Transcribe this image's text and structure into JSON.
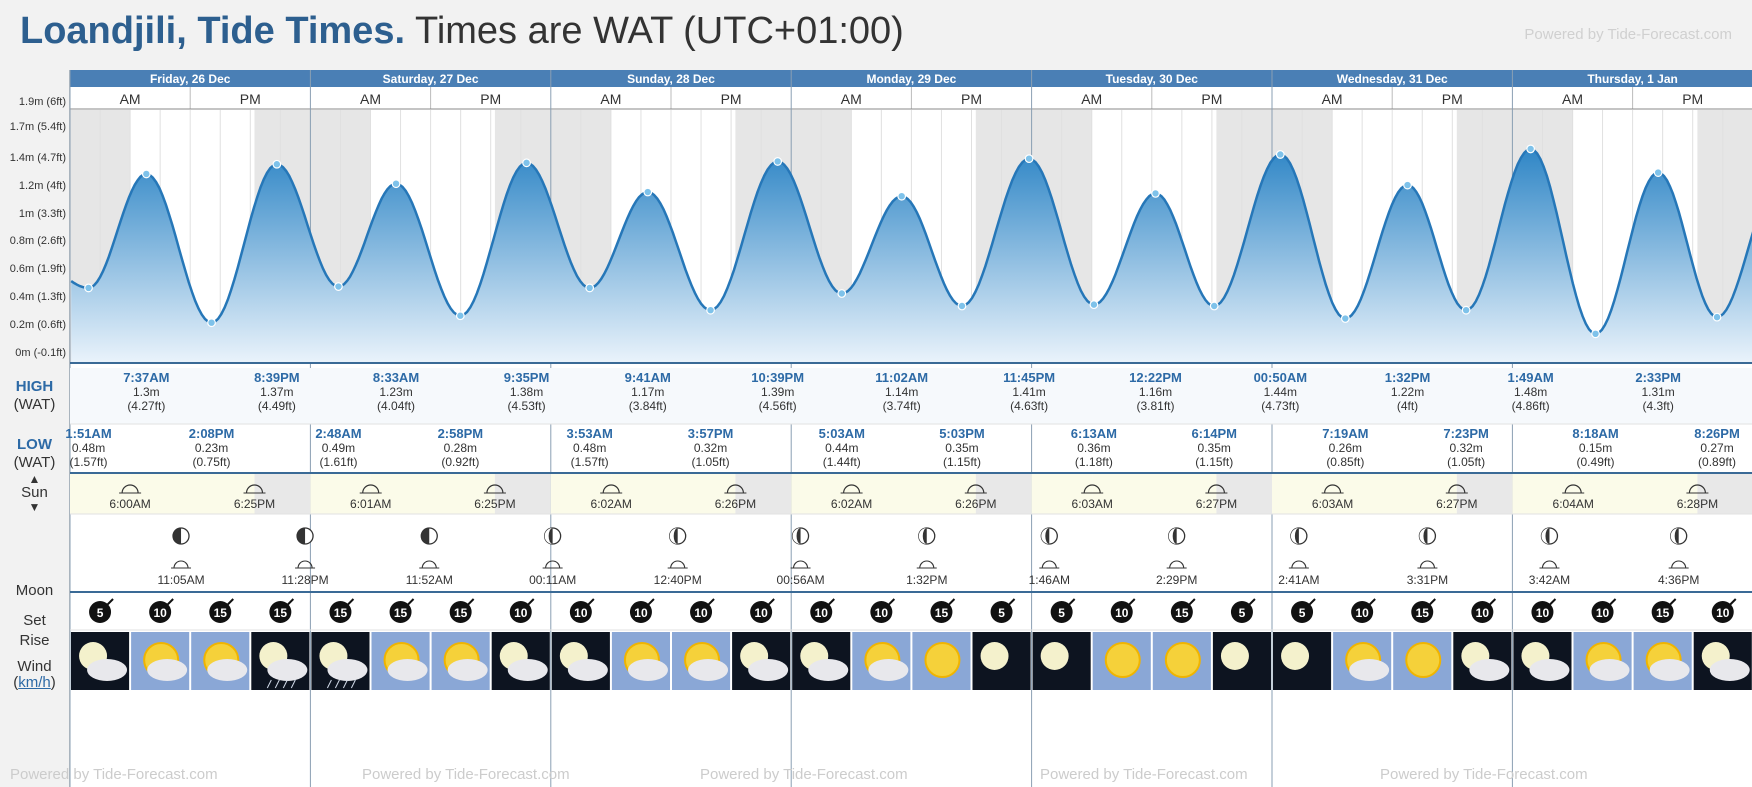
{
  "header": {
    "location_title": "Loandjili, Tide Times.",
    "timezone_text": "Times are WAT (UTC+01:00)",
    "powered_by": "Powered by Tide-Forecast.com"
  },
  "row_labels": {
    "high": "HIGH",
    "high_tz": "(WAT)",
    "low": "LOW",
    "low_tz": "(WAT)",
    "sun": "Sun",
    "moon": "Moon",
    "set": "Set",
    "rise": "Rise",
    "wind": "Wind",
    "wind_unit": "km/h"
  },
  "days": [
    {
      "label": "Friday, 26 Dec",
      "am": "AM",
      "pm": "PM"
    },
    {
      "label": "Saturday, 27 Dec",
      "am": "AM",
      "pm": "PM"
    },
    {
      "label": "Sunday, 28 Dec",
      "am": "AM",
      "pm": "PM"
    },
    {
      "label": "Monday, 29 Dec",
      "am": "AM",
      "pm": "PM"
    },
    {
      "label": "Tuesday, 30 Dec",
      "am": "AM",
      "pm": "PM"
    },
    {
      "label": "Wednesday, 31 Dec",
      "am": "AM",
      "pm": "PM"
    },
    {
      "label": "Thursday, 1 Jan",
      "am": "AM",
      "pm": "PM"
    }
  ],
  "chart_data": {
    "type": "area",
    "title": "Loandjili, Tide Times.",
    "ylabel": "",
    "xlabel": "",
    "y_ticks": [
      "0m (-0.1ft)",
      "0.2m (0.6ft)",
      "0.4m (1.3ft)",
      "0.6m (1.9ft)",
      "0.8m (2.6ft)",
      "1m (3.3ft)",
      "1.2m (4ft)",
      "1.4m (4.7ft)",
      "1.7m (5.4ft)",
      "1.9m (6ft)"
    ],
    "ylim": [
      0,
      1.8
    ],
    "x_unit": "hours from Fri 26 Dec 00:00",
    "tides": [
      {
        "day": "Fri 26 Dec",
        "type": "low",
        "time": "1:51AM",
        "height_m": 0.48,
        "height_ft": "(1.57ft)",
        "hours": 1.85
      },
      {
        "day": "Fri 26 Dec",
        "type": "high",
        "time": "7:37AM",
        "height_m": 1.3,
        "height_ft": "(4.27ft)",
        "hours": 7.62
      },
      {
        "day": "Fri 26 Dec",
        "type": "low",
        "time": "2:08PM",
        "height_m": 0.23,
        "height_ft": "(0.75ft)",
        "hours": 14.13
      },
      {
        "day": "Fri 26 Dec",
        "type": "high",
        "time": "8:39PM",
        "height_m": 1.37,
        "height_ft": "(4.49ft)",
        "hours": 20.65
      },
      {
        "day": "Sat 27 Dec",
        "type": "low",
        "time": "2:48AM",
        "height_m": 0.49,
        "height_ft": "(1.61ft)",
        "hours": 26.8
      },
      {
        "day": "Sat 27 Dec",
        "type": "high",
        "time": "8:33AM",
        "height_m": 1.23,
        "height_ft": "(4.04ft)",
        "hours": 32.55
      },
      {
        "day": "Sat 27 Dec",
        "type": "low",
        "time": "2:58PM",
        "height_m": 0.28,
        "height_ft": "(0.92ft)",
        "hours": 38.97
      },
      {
        "day": "Sat 27 Dec",
        "type": "high",
        "time": "9:35PM",
        "height_m": 1.38,
        "height_ft": "(4.53ft)",
        "hours": 45.58
      },
      {
        "day": "Sun 28 Dec",
        "type": "low",
        "time": "3:53AM",
        "height_m": 0.48,
        "height_ft": "(1.57ft)",
        "hours": 51.88
      },
      {
        "day": "Sun 28 Dec",
        "type": "high",
        "time": "9:41AM",
        "height_m": 1.17,
        "height_ft": "(3.84ft)",
        "hours": 57.68
      },
      {
        "day": "Sun 28 Dec",
        "type": "low",
        "time": "3:57PM",
        "height_m": 0.32,
        "height_ft": "(1.05ft)",
        "hours": 63.95
      },
      {
        "day": "Sun 28 Dec",
        "type": "high",
        "time": "10:39PM",
        "height_m": 1.39,
        "height_ft": "(4.56ft)",
        "hours": 70.65
      },
      {
        "day": "Mon 29 Dec",
        "type": "low",
        "time": "5:03AM",
        "height_m": 0.44,
        "height_ft": "(1.44ft)",
        "hours": 77.05
      },
      {
        "day": "Mon 29 Dec",
        "type": "high",
        "time": "11:02AM",
        "height_m": 1.14,
        "height_ft": "(3.74ft)",
        "hours": 83.03
      },
      {
        "day": "Mon 29 Dec",
        "type": "low",
        "time": "5:03PM",
        "height_m": 0.35,
        "height_ft": "(1.15ft)",
        "hours": 89.05
      },
      {
        "day": "Mon 29 Dec",
        "type": "high",
        "time": "11:45PM",
        "height_m": 1.41,
        "height_ft": "(4.63ft)",
        "hours": 95.75
      },
      {
        "day": "Tue 30 Dec",
        "type": "low",
        "time": "6:13AM",
        "height_m": 0.36,
        "height_ft": "(1.18ft)",
        "hours": 102.22
      },
      {
        "day": "Tue 30 Dec",
        "type": "high",
        "time": "12:22PM",
        "height_m": 1.16,
        "height_ft": "(3.81ft)",
        "hours": 108.37
      },
      {
        "day": "Tue 30 Dec",
        "type": "low",
        "time": "6:14PM",
        "height_m": 0.35,
        "height_ft": "(1.15ft)",
        "hours": 114.23
      },
      {
        "day": "Wed 31 Dec",
        "type": "high",
        "time": "00:50AM",
        "height_m": 1.44,
        "height_ft": "(4.73ft)",
        "hours": 120.83
      },
      {
        "day": "Wed 31 Dec",
        "type": "low",
        "time": "7:19AM",
        "height_m": 0.26,
        "height_ft": "(0.85ft)",
        "hours": 127.32
      },
      {
        "day": "Wed 31 Dec",
        "type": "high",
        "time": "1:32PM",
        "height_m": 1.22,
        "height_ft": "(4ft)",
        "hours": 133.53
      },
      {
        "day": "Wed 31 Dec",
        "type": "low",
        "time": "7:23PM",
        "height_m": 0.32,
        "height_ft": "(1.05ft)",
        "hours": 139.38
      },
      {
        "day": "Thu 1 Jan",
        "type": "high",
        "time": "1:49AM",
        "height_m": 1.48,
        "height_ft": "(4.86ft)",
        "hours": 145.82
      },
      {
        "day": "Thu 1 Jan",
        "type": "low",
        "time": "8:18AM",
        "height_m": 0.15,
        "height_ft": "(0.49ft)",
        "hours": 152.3
      },
      {
        "day": "Thu 1 Jan",
        "type": "high",
        "time": "2:33PM",
        "height_m": 1.31,
        "height_ft": "(4.3ft)",
        "hours": 158.55
      },
      {
        "day": "Thu 1 Jan",
        "type": "low",
        "time": "8:26PM",
        "height_m": 0.27,
        "height_ft": "(0.89ft)",
        "hours": 164.43
      }
    ],
    "grid": true,
    "colors": {
      "fill_top": "#2f86c6",
      "fill_bottom": "#eaf3fb",
      "line": "#2677b8",
      "night": "#e6e6e6"
    }
  },
  "sun": [
    {
      "sunrise": "6:00AM",
      "sunset": "6:25PM",
      "sunrise_h": 6.0,
      "sunset_h": 18.42
    },
    {
      "sunrise": "6:01AM",
      "sunset": "6:25PM",
      "sunrise_h": 6.02,
      "sunset_h": 18.42
    },
    {
      "sunrise": "6:02AM",
      "sunset": "6:26PM",
      "sunrise_h": 6.03,
      "sunset_h": 18.43
    },
    {
      "sunrise": "6:02AM",
      "sunset": "6:26PM",
      "sunrise_h": 6.03,
      "sunset_h": 18.43
    },
    {
      "sunrise": "6:03AM",
      "sunset": "6:27PM",
      "sunrise_h": 6.05,
      "sunset_h": 18.45
    },
    {
      "sunrise": "6:03AM",
      "sunset": "6:27PM",
      "sunrise_h": 6.05,
      "sunset_h": 18.45
    },
    {
      "sunrise": "6:04AM",
      "sunset": "6:28PM",
      "sunrise_h": 6.07,
      "sunset_h": 18.47
    }
  ],
  "moon": [
    {
      "event": "rise",
      "time": "11:05AM",
      "phase": "first-quarter"
    },
    {
      "event": "set",
      "time": "11:28PM",
      "phase": "first-quarter"
    },
    {
      "event": "rise",
      "time": "11:52AM",
      "phase": "first-quarter"
    },
    {
      "event": "set",
      "time": "00:11AM",
      "phase": "waxing-gibbous"
    },
    {
      "event": "rise",
      "time": "12:40PM",
      "phase": "waxing-gibbous"
    },
    {
      "event": "set",
      "time": "00:56AM",
      "phase": "waxing-gibbous"
    },
    {
      "event": "rise",
      "time": "1:32PM",
      "phase": "waxing-gibbous"
    },
    {
      "event": "set",
      "time": "1:46AM",
      "phase": "waxing-gibbous"
    },
    {
      "event": "rise",
      "time": "2:29PM",
      "phase": "waxing-gibbous"
    },
    {
      "event": "set",
      "time": "2:41AM",
      "phase": "waxing-gibbous"
    },
    {
      "event": "rise",
      "time": "3:31PM",
      "phase": "waxing-gibbous"
    },
    {
      "event": "set",
      "time": "3:42AM",
      "phase": "waxing-gibbous"
    },
    {
      "event": "rise",
      "time": "4:36PM",
      "phase": "waxing-gibbous"
    }
  ],
  "wind": [
    5,
    10,
    15,
    15,
    15,
    15,
    15,
    10,
    10,
    10,
    10,
    10,
    10,
    10,
    15,
    5,
    5,
    10,
    15,
    5,
    5,
    10,
    15,
    10,
    10,
    10,
    15,
    10
  ],
  "weather": [
    "night-cloud",
    "partly-sunny",
    "partly-sunny",
    "night-rain",
    "night-rain",
    "partly-sunny",
    "partly-sunny",
    "night-cloud",
    "night-cloud",
    "partly-sunny",
    "partly-sunny",
    "night-cloud",
    "night-cloud",
    "partly-sunny",
    "sunny",
    "night-clear",
    "night-clear",
    "sunny",
    "sunny",
    "night-clear",
    "night-clear",
    "partly-sunny",
    "sunny",
    "night-cloud",
    "night-cloud",
    "partly-sunny",
    "partly-sunny",
    "night-cloud"
  ]
}
